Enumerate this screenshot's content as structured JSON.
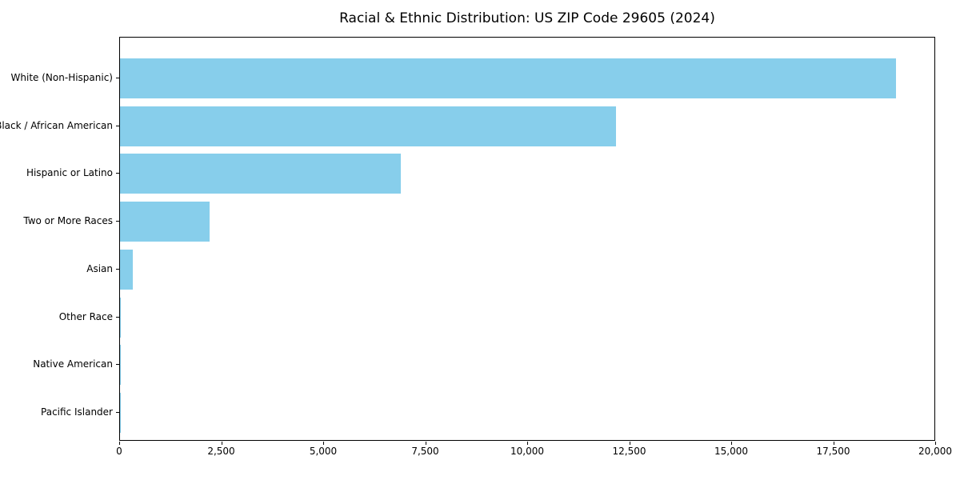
{
  "figure": {
    "background": "#ffffff"
  },
  "chart_data": {
    "type": "bar",
    "orientation": "horizontal",
    "title": "Racial & Ethnic Distribution: US ZIP Code 29605 (2024)",
    "xlabel": "",
    "ylabel": "",
    "categories": [
      "White (Non-Hispanic)",
      "Black / African American",
      "Hispanic or Latino",
      "Two or More Races",
      "Asian",
      "Other Race",
      "Native American",
      "Pacific Islander"
    ],
    "values": [
      19020,
      12160,
      6880,
      2200,
      320,
      25,
      15,
      5
    ],
    "xlim": [
      0,
      20000
    ],
    "xticks": [
      0,
      2500,
      5000,
      7500,
      10000,
      12500,
      15000,
      17500,
      20000
    ],
    "xtick_labels": [
      "0",
      "2,500",
      "5,000",
      "7,500",
      "10,000",
      "12,500",
      "15,000",
      "17,500",
      "20,000"
    ],
    "bar_color": "#87CEEB",
    "grid": false,
    "legend": null
  },
  "colors": {
    "bar": "#87CEEB",
    "spine": "#000000",
    "text": "#000000",
    "background": "#ffffff"
  }
}
